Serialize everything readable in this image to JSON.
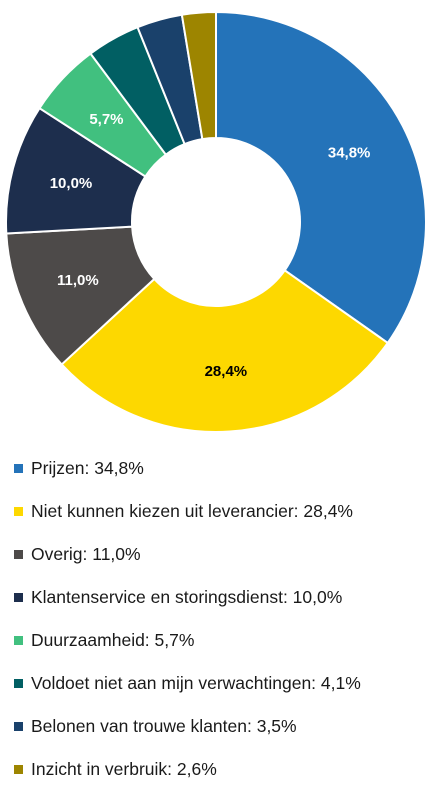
{
  "chart_data": {
    "type": "donut",
    "categories": [
      "Prijzen",
      "Niet kunnen kiezen uit leverancier",
      "Overig",
      "Klantenservice en storingsdienst",
      "Duurzaamheid",
      "Voldoet niet aan mijn verwachtingen",
      "Belonen van trouwe klanten",
      "Inzicht in verbruik"
    ],
    "values": [
      34.8,
      28.4,
      11.0,
      10.0,
      5.7,
      4.1,
      3.5,
      2.6
    ],
    "value_labels": [
      "34,8%",
      "28,4%",
      "11,0%",
      "10,0%",
      "5,7%",
      "",
      "",
      ""
    ],
    "colors": [
      "#2473b9",
      "#fdd800",
      "#4d4a49",
      "#1d2e4d",
      "#41c07f",
      "#015f63",
      "#1a416b",
      "#9d8500"
    ],
    "label_colors": [
      "#ffffff",
      "#000000",
      "#ffffff",
      "#ffffff",
      "#ffffff",
      "#ffffff",
      "#ffffff",
      "#ffffff"
    ],
    "legend": {
      "position": "bottom",
      "items": [
        "Prijzen: 34,8%",
        "Niet kunnen kiezen uit leverancier: 28,4%",
        "Overig: 11,0%",
        "Klantenservice en storingsdienst: 10,0%",
        "Duurzaamheid: 5,7%",
        "Voldoet niet aan mijn verwachtingen: 4,1%",
        "Belonen van trouwe klanten: 3,5%",
        "Inzicht in verbruik: 2,6%"
      ]
    }
  }
}
